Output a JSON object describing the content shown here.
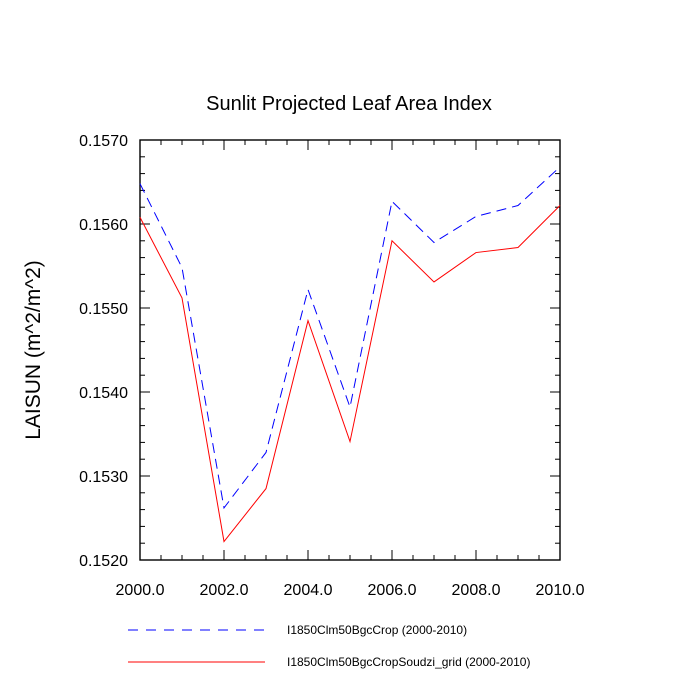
{
  "chart_data": {
    "type": "line",
    "title": "Sunlit Projected Leaf Area Index",
    "ylabel": "LAISUN  (m^2/m^2)",
    "xlabel": "",
    "xlim": [
      2000,
      2010
    ],
    "ylim": [
      0.152,
      0.157
    ],
    "x": [
      2000,
      2001,
      2002,
      2003,
      2004,
      2005,
      2006,
      2007,
      2008,
      2009,
      2010
    ],
    "xticks": [
      2000,
      2002,
      2004,
      2006,
      2008,
      2010
    ],
    "xtick_labels": [
      "2000.0",
      "2002.0",
      "2004.0",
      "2006.0",
      "2008.0",
      "2010.0"
    ],
    "yticks": [
      0.152,
      0.153,
      0.154,
      0.155,
      0.156,
      0.157
    ],
    "ytick_labels": [
      "0.1520",
      "0.1530",
      "0.1540",
      "0.1550",
      "0.1560",
      "0.1570"
    ],
    "grid": false,
    "legend_position": "bottom",
    "series": [
      {
        "name": "I1850Clm50BgcCrop (2000-2010)",
        "color": "#0000ff",
        "style": "dashed",
        "values": [
          0.15648,
          0.15548,
          0.15262,
          0.15328,
          0.15522,
          0.15382,
          0.15627,
          0.15578,
          0.15609,
          0.15622,
          0.15668
        ]
      },
      {
        "name": "I1850Clm50BgcCropSoudzi_grid (2000-2010)",
        "color": "#ff0000",
        "style": "solid",
        "values": [
          0.15608,
          0.15512,
          0.15222,
          0.15285,
          0.15485,
          0.15341,
          0.1558,
          0.15531,
          0.15566,
          0.15572,
          0.15622
        ]
      }
    ]
  }
}
